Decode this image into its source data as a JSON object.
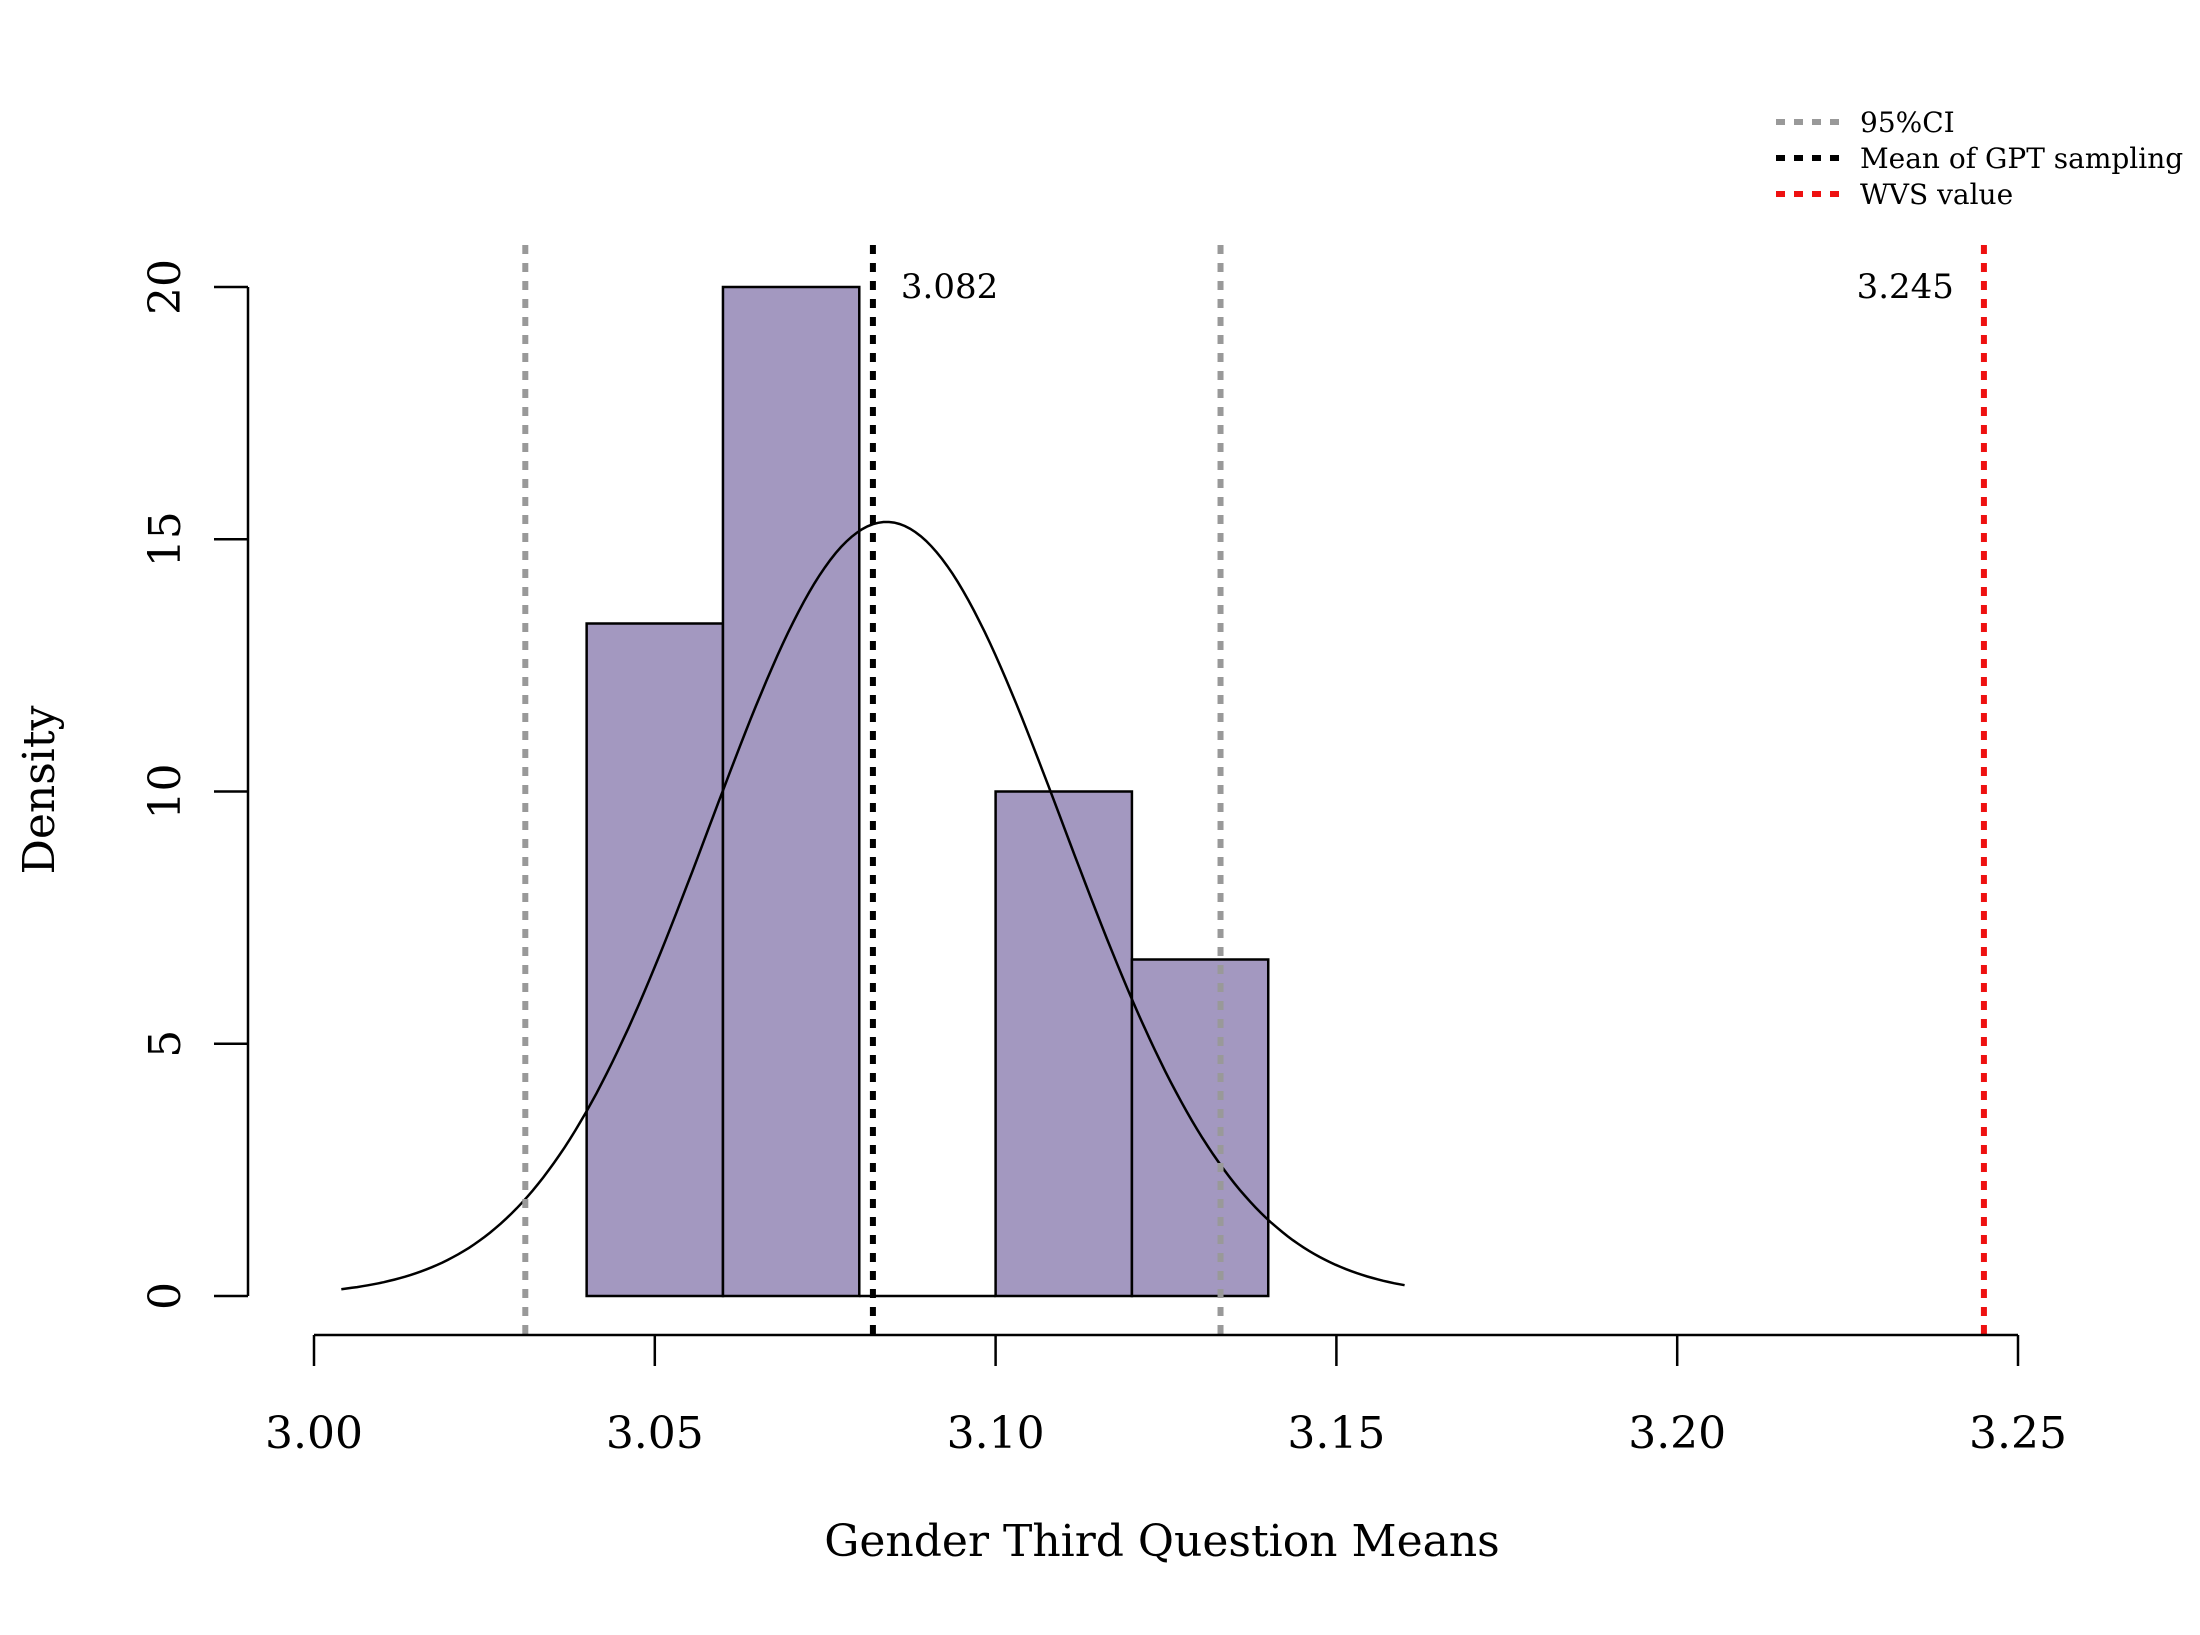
{
  "chart_data": {
    "type": "histogram",
    "title": "",
    "xlabel": "Gender Third Question Means",
    "ylabel": "Density",
    "xlim": [
      3.0,
      3.25
    ],
    "ylim": [
      0,
      20
    ],
    "x_ticks": [
      3.0,
      3.05,
      3.1,
      3.15,
      3.2,
      3.25
    ],
    "x_tick_labels": [
      "3.00",
      "3.05",
      "3.10",
      "3.15",
      "3.20",
      "3.25"
    ],
    "y_ticks": [
      0,
      5,
      10,
      15,
      20
    ],
    "y_tick_labels": [
      "0",
      "5",
      "10",
      "15",
      "20"
    ],
    "bars": [
      {
        "x0": 3.04,
        "x1": 3.06,
        "density": 13.33
      },
      {
        "x0": 3.06,
        "x1": 3.08,
        "density": 20.0
      },
      {
        "x0": 3.08,
        "x1": 3.1,
        "density": 0.0
      },
      {
        "x0": 3.1,
        "x1": 3.12,
        "density": 10.0
      },
      {
        "x0": 3.12,
        "x1": 3.14,
        "density": 6.67
      }
    ],
    "bar_color": "#a398c0",
    "normal_curve": {
      "mean": 3.084,
      "sd": 0.026,
      "x_from": 3.004,
      "x_to": 3.16
    },
    "reference_lines": [
      {
        "name": "ci-lower",
        "x": 3.031,
        "color": "#999999",
        "legend": "95%CI"
      },
      {
        "name": "ci-upper",
        "x": 3.133,
        "color": "#999999",
        "legend": "95%CI"
      },
      {
        "name": "gpt-mean",
        "x": 3.082,
        "color": "#000000",
        "legend": "Mean of GPT sampling",
        "label": "3.082"
      },
      {
        "name": "wvs-value",
        "x": 3.245,
        "color": "#ee1111",
        "legend": "WVS value",
        "label": "3.245"
      }
    ],
    "legend": {
      "position": "top-right",
      "entries": [
        {
          "label": "95%CI",
          "color": "#999999"
        },
        {
          "label": "Mean of GPT sampling",
          "color": "#000000"
        },
        {
          "label": "WVS value",
          "color": "#ee1111"
        }
      ]
    }
  }
}
